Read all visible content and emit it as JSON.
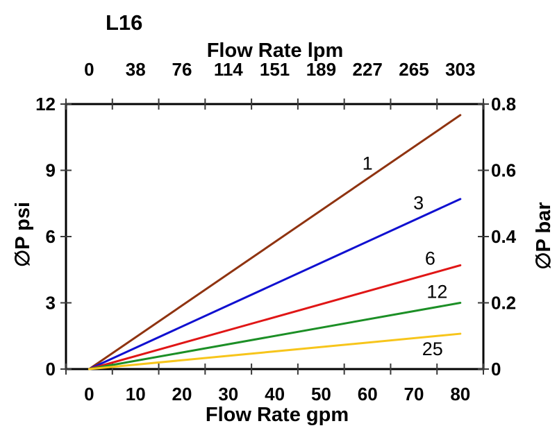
{
  "chart_data": {
    "type": "line",
    "title": "L16",
    "top_axis": {
      "label": "Flow Rate lpm",
      "ticks": [
        "0",
        "38",
        "76",
        "114",
        "151",
        "189",
        "227",
        "265",
        "303"
      ]
    },
    "bottom_axis": {
      "label": "Flow Rate gpm",
      "ticks": [
        "0",
        "10",
        "20",
        "30",
        "40",
        "50",
        "60",
        "70",
        "80"
      ],
      "range_gpm": [
        0,
        80
      ]
    },
    "left_axis": {
      "label": "∅P psi",
      "ticks": [
        "0",
        "3",
        "6",
        "9",
        "12"
      ],
      "range_psi": [
        0,
        12
      ]
    },
    "right_axis": {
      "label": "∅P bar",
      "ticks": [
        "0",
        "0.2",
        "0.4",
        "0.6",
        "0.8"
      ],
      "range_bar": [
        0,
        0.8
      ]
    },
    "grid": "off",
    "legend": "inline-curve-labels",
    "series": [
      {
        "name": "1",
        "color": "#8F3310",
        "points_gpm_psi": [
          [
            0,
            0
          ],
          [
            80,
            11.5
          ]
        ],
        "label_gpm": 60,
        "label_side": "above"
      },
      {
        "name": "3",
        "color": "#1010D0",
        "points_gpm_psi": [
          [
            0,
            0
          ],
          [
            80,
            7.7
          ]
        ],
        "label_gpm": 71,
        "label_side": "above"
      },
      {
        "name": "6",
        "color": "#E01616",
        "points_gpm_psi": [
          [
            0,
            0
          ],
          [
            80,
            4.7
          ]
        ],
        "label_gpm": 73.5,
        "label_side": "above"
      },
      {
        "name": "12",
        "color": "#1C8F26",
        "points_gpm_psi": [
          [
            0,
            0
          ],
          [
            80,
            3.0
          ]
        ],
        "label_gpm": 75,
        "label_side": "above"
      },
      {
        "name": "25",
        "color": "#F7C51B",
        "points_gpm_psi": [
          [
            0,
            0
          ],
          [
            80,
            1.6
          ]
        ],
        "label_gpm": 74,
        "label_side": "below"
      }
    ]
  }
}
